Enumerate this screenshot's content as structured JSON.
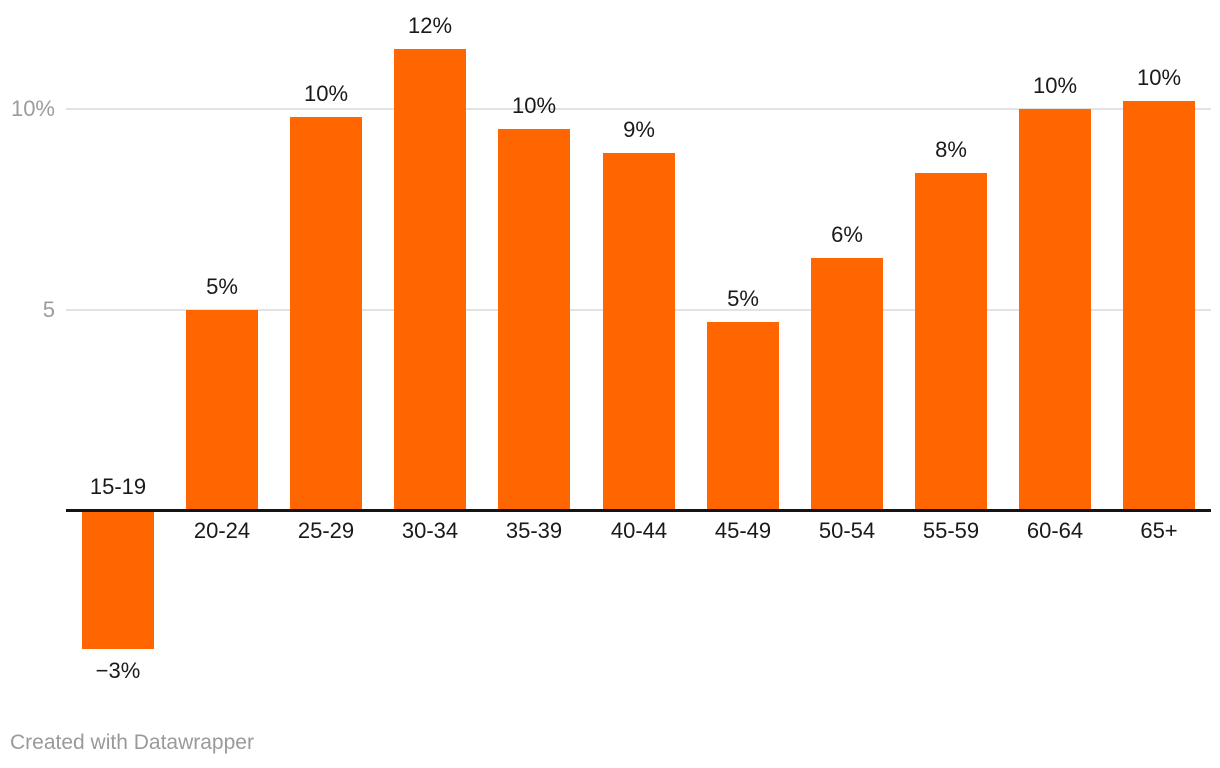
{
  "chart_data": {
    "type": "bar",
    "title": "",
    "xlabel": "",
    "ylabel": "",
    "categories": [
      "15-19",
      "20-24",
      "25-29",
      "30-34",
      "35-39",
      "40-44",
      "45-49",
      "50-54",
      "55-59",
      "60-64",
      "65+"
    ],
    "values": [
      -3.4,
      5.0,
      9.8,
      11.5,
      9.5,
      8.9,
      4.7,
      6.3,
      8.4,
      10.0,
      10.2
    ],
    "value_labels": [
      "−3%",
      "5%",
      "10%",
      "12%",
      "10%",
      "9%",
      "5%",
      "6%",
      "8%",
      "10%",
      "10%"
    ],
    "ylim": [
      -4.6,
      12.9
    ],
    "grid": true,
    "legend": "none",
    "y_axis": {
      "ticks": [
        {
          "value": 5,
          "label": "5"
        },
        {
          "value": 10,
          "label": "10%"
        }
      ]
    },
    "colors": {
      "bar": "#FF6600",
      "value_label": "#1a1a1a",
      "category_label": "#1a1a1a",
      "tick_label": "#9c9c9c",
      "gridline": "#e3e3e3",
      "axis_line": "#141414"
    }
  },
  "credit": {
    "text": "Created with Datawrapper"
  }
}
